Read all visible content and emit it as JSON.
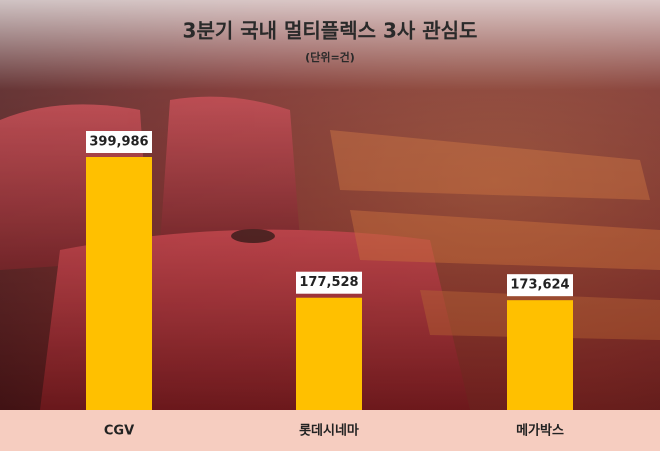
{
  "chart_data": {
    "type": "bar",
    "title": "3분기 국내 멀티플렉스 3사 관심도",
    "subtitle": "(단위=건)",
    "categories": [
      "CGV",
      "롯데시네마",
      "메가박스"
    ],
    "values": [
      399986,
      177528,
      173624
    ],
    "value_labels": [
      "399,986",
      "177,528",
      "173,624"
    ],
    "color": "#ffc000"
  }
}
